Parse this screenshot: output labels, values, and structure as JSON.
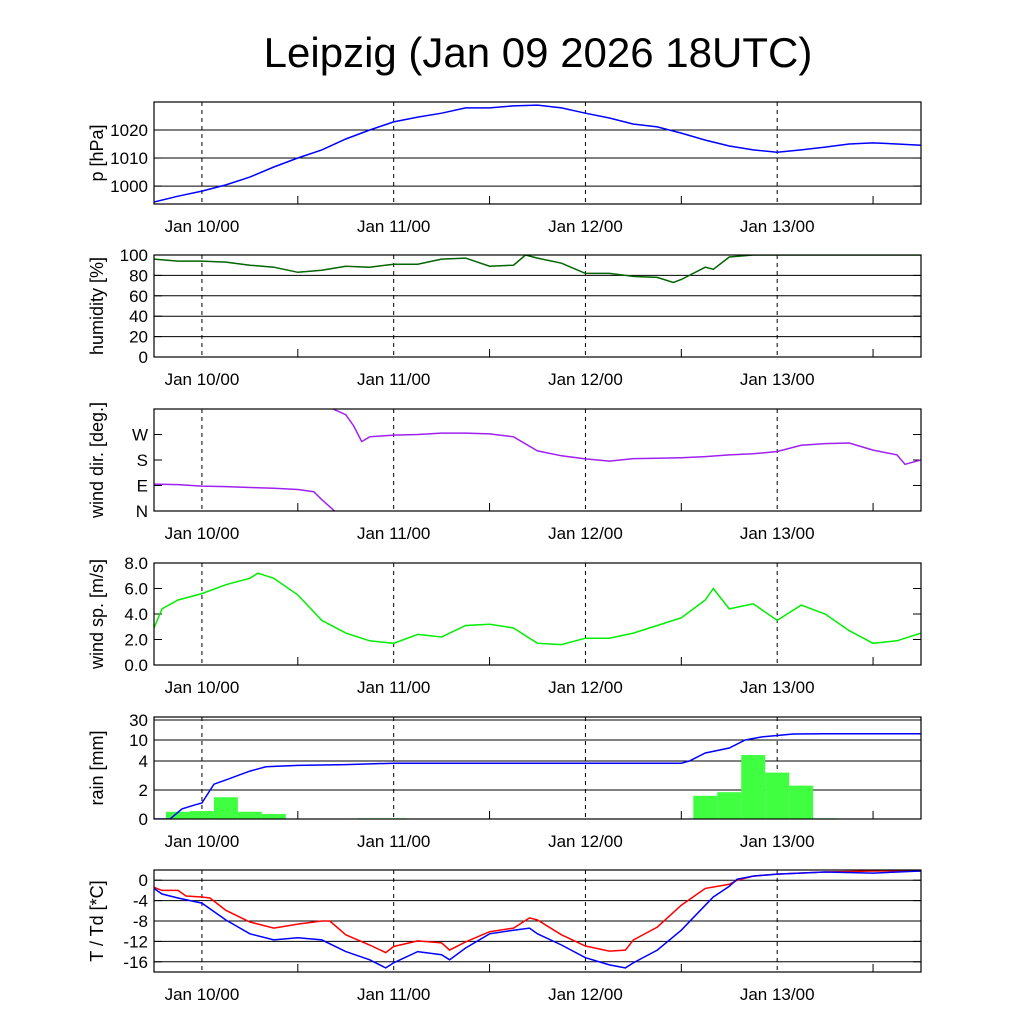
{
  "title": "Leipzig (Jan 09 2026 18UTC)",
  "chart_data": [
    {
      "id": "pressure",
      "type": "line",
      "ylabel": "p [hPa]",
      "ylim": [
        993.6,
        1030
      ],
      "x_unit": "hours since Jan 09 18UTC",
      "xlim": [
        0,
        96
      ],
      "xticks": [
        {
          "h": 6,
          "label": "Jan 10/00"
        },
        {
          "h": 30,
          "label": "Jan 11/00"
        },
        {
          "h": 54,
          "label": "Jan 12/00"
        },
        {
          "h": 78,
          "label": "Jan 13/00"
        }
      ],
      "yticks": [
        {
          "v": 1000,
          "label": "1000"
        },
        {
          "v": 1010,
          "label": "1010"
        },
        {
          "v": 1020,
          "label": "1020"
        }
      ],
      "grid": true,
      "series": [
        {
          "name": "pressure",
          "color": "#0000ff",
          "x": [
            0,
            3,
            6,
            9,
            12,
            15,
            18,
            21,
            24,
            27,
            30,
            33,
            36,
            39,
            42,
            45,
            48,
            51,
            54,
            57,
            60,
            63,
            66,
            69,
            72,
            75,
            78,
            81,
            84,
            87,
            90,
            93,
            96
          ],
          "values": [
            994.3,
            996.4,
            998.2,
            1000.4,
            1003.2,
            1006.8,
            1010,
            1012.9,
            1016.8,
            1020,
            1022.9,
            1024.6,
            1026,
            1027.9,
            1027.9,
            1028.6,
            1028.9,
            1027.9,
            1026,
            1024.3,
            1022.1,
            1021.1,
            1018.9,
            1016.4,
            1014.3,
            1012.9,
            1012.1,
            1012.9,
            1013.9,
            1015,
            1015.4,
            1015,
            1014.6
          ]
        }
      ]
    },
    {
      "id": "humidity",
      "type": "line",
      "ylabel": "humidity [%]",
      "ylim": [
        0,
        100
      ],
      "x_unit": "hours since Jan 09 18UTC",
      "xlim": [
        0,
        96
      ],
      "xticks": [
        {
          "h": 6,
          "label": "Jan 10/00"
        },
        {
          "h": 30,
          "label": "Jan 11/00"
        },
        {
          "h": 54,
          "label": "Jan 12/00"
        },
        {
          "h": 78,
          "label": "Jan 13/00"
        }
      ],
      "yticks": [
        {
          "v": 0,
          "label": "0"
        },
        {
          "v": 20,
          "label": "20"
        },
        {
          "v": 40,
          "label": "40"
        },
        {
          "v": 60,
          "label": "60"
        },
        {
          "v": 80,
          "label": "80"
        },
        {
          "v": 100,
          "label": "100"
        }
      ],
      "grid": true,
      "series": [
        {
          "name": "humidity",
          "color": "#006400",
          "x": [
            0,
            3,
            6,
            9,
            12,
            15,
            18,
            21,
            24,
            27,
            30,
            33,
            36,
            39,
            42,
            45,
            46.5,
            48,
            51,
            54,
            57,
            60,
            63,
            65,
            66,
            69,
            70,
            72,
            75,
            78,
            84,
            90,
            96
          ],
          "values": [
            96,
            94,
            94,
            93,
            90,
            88,
            83,
            85,
            89,
            88,
            91,
            91,
            96,
            97,
            89,
            90,
            100,
            97,
            92,
            82,
            82,
            79,
            78,
            73,
            76,
            88,
            86,
            98,
            100,
            100,
            100,
            100,
            100
          ]
        }
      ]
    },
    {
      "id": "wind_direction",
      "type": "line",
      "ylabel": "wind dir. [deg.]",
      "ylim": [
        0,
        360
      ],
      "x_unit": "hours since Jan 09 18UTC",
      "xlim": [
        0,
        96
      ],
      "xticks": [
        {
          "h": 6,
          "label": "Jan 10/00"
        },
        {
          "h": 30,
          "label": "Jan 11/00"
        },
        {
          "h": 54,
          "label": "Jan 12/00"
        },
        {
          "h": 78,
          "label": "Jan 13/00"
        }
      ],
      "yticks": [
        {
          "v": 0,
          "label": "N"
        },
        {
          "v": 90,
          "label": "E"
        },
        {
          "v": 180,
          "label": "S"
        },
        {
          "v": 270,
          "label": "W"
        }
      ],
      "grid": false,
      "series": [
        {
          "name": "wind direction",
          "color": "#a020f0",
          "x": [
            0,
            3,
            6,
            9,
            12,
            15,
            18,
            20,
            21,
            22.6,
            22.4,
            24,
            25,
            26,
            27,
            30,
            33,
            36,
            39,
            42,
            45,
            48,
            51,
            54,
            57,
            60,
            63,
            66,
            69,
            72,
            75,
            78,
            81,
            84,
            87,
            90,
            93,
            94,
            96
          ],
          "values": [
            95,
            93,
            88,
            86,
            83,
            80,
            76,
            68,
            40,
            0,
            360,
            340,
            300,
            245,
            262,
            268,
            270,
            275,
            275,
            272,
            262,
            212,
            195,
            184,
            176,
            185,
            186,
            188,
            192,
            198,
            202,
            210,
            232,
            238,
            240,
            215,
            198,
            165,
            180
          ]
        }
      ]
    },
    {
      "id": "wind_speed",
      "type": "line",
      "ylabel": "wind sp. [m/s]",
      "ylim": [
        0,
        8
      ],
      "x_unit": "hours since Jan 09 18UTC",
      "xlim": [
        0,
        96
      ],
      "xticks": [
        {
          "h": 6,
          "label": "Jan 10/00"
        },
        {
          "h": 30,
          "label": "Jan 11/00"
        },
        {
          "h": 54,
          "label": "Jan 12/00"
        },
        {
          "h": 78,
          "label": "Jan 13/00"
        }
      ],
      "yticks": [
        {
          "v": 0,
          "label": "0.0"
        },
        {
          "v": 2,
          "label": "2.0"
        },
        {
          "v": 4,
          "label": "4.0"
        },
        {
          "v": 6,
          "label": "6.0"
        },
        {
          "v": 8,
          "label": "8.0"
        }
      ],
      "grid": false,
      "series": [
        {
          "name": "wind speed",
          "color": "#00ee00",
          "x": [
            0,
            1,
            3,
            6,
            9,
            12,
            13,
            15,
            18,
            21,
            24,
            27,
            30,
            33,
            36,
            39,
            42,
            45,
            48,
            51,
            54,
            57,
            60,
            63,
            66,
            69,
            70,
            72,
            75,
            78,
            81,
            84,
            87,
            90,
            93,
            96
          ],
          "values": [
            2.9,
            4.4,
            5.1,
            5.6,
            6.3,
            6.8,
            7.2,
            6.8,
            5.5,
            3.5,
            2.5,
            1.9,
            1.7,
            2.4,
            2.2,
            3.1,
            3.2,
            2.9,
            1.7,
            1.6,
            2.1,
            2.1,
            2.5,
            3.1,
            3.7,
            5.1,
            6.0,
            4.4,
            4.8,
            3.5,
            4.7,
            4.0,
            2.7,
            1.7,
            1.9,
            2.5
          ]
        }
      ]
    },
    {
      "id": "rain",
      "type": "bar+line",
      "ylabel": "rain [mm]",
      "ylim": [
        0,
        30
      ],
      "x_unit": "hours since Jan 09 18UTC",
      "xlim": [
        0,
        96
      ],
      "xticks": [
        {
          "h": 6,
          "label": "Jan 10/00"
        },
        {
          "h": 30,
          "label": "Jan 11/00"
        },
        {
          "h": 54,
          "label": "Jan 12/00"
        },
        {
          "h": 78,
          "label": "Jan 13/00"
        }
      ],
      "yticks": [
        {
          "v": 0,
          "label": "0"
        },
        {
          "v": 2,
          "label": "2"
        },
        {
          "v": 4,
          "label": "4"
        },
        {
          "v": 10,
          "label": "10"
        },
        {
          "v": 30,
          "label": "30"
        }
      ],
      "grid": true,
      "bars": {
        "name": "3h precipitation",
        "color": "#40ff40",
        "width_hours": 3,
        "x": [
          3,
          6,
          9,
          12,
          15,
          27,
          30,
          69,
          72,
          75,
          78,
          81,
          84
        ],
        "values": [
          0.5,
          0.55,
          1.5,
          0.5,
          0.35,
          0.05,
          0.05,
          1.6,
          1.85,
          5.7,
          3.2,
          2.3,
          0.05
        ]
      },
      "series": [
        {
          "name": "accumulated precipitation",
          "color": "#0000ff",
          "x": [
            0,
            2,
            3.5,
            5,
            6,
            7.5,
            9,
            12,
            14,
            18,
            24,
            30,
            48,
            66,
            67,
            69,
            72,
            74,
            76,
            78,
            80,
            84,
            90,
            96
          ],
          "values": [
            0,
            0,
            0.7,
            0.95,
            1.1,
            2.4,
            2.7,
            3.3,
            3.6,
            3.7,
            3.75,
            3.85,
            3.85,
            3.85,
            4.0,
            6.3,
            7.7,
            10,
            13,
            14.5,
            16,
            16.3,
            16.3,
            16.3
          ]
        }
      ]
    },
    {
      "id": "temperature",
      "type": "line",
      "ylabel": "T / Td [*C]",
      "ylim": [
        -18,
        2
      ],
      "x_unit": "hours since Jan 09 18UTC",
      "xlim": [
        0,
        96
      ],
      "xticks": [
        {
          "h": 6,
          "label": "Jan 10/00"
        },
        {
          "h": 30,
          "label": "Jan 11/00"
        },
        {
          "h": 54,
          "label": "Jan 12/00"
        },
        {
          "h": 78,
          "label": "Jan 13/00"
        }
      ],
      "yticks": [
        {
          "v": -16,
          "label": "-16"
        },
        {
          "v": -12,
          "label": "-12"
        },
        {
          "v": -8,
          "label": "-8"
        },
        {
          "v": -4,
          "label": "-4"
        },
        {
          "v": 0,
          "label": "0"
        }
      ],
      "grid": true,
      "series": [
        {
          "name": "T",
          "color": "#ff0000",
          "x": [
            0,
            1,
            3,
            4,
            6,
            7,
            9,
            12,
            15,
            18,
            21,
            22,
            24,
            27,
            29,
            30,
            33,
            36,
            37,
            39,
            42,
            45,
            47,
            48,
            51,
            54,
            57,
            59,
            60,
            63,
            66,
            69,
            72,
            73,
            75,
            78,
            84,
            90,
            96
          ],
          "values": [
            -1.4,
            -2,
            -2,
            -3.1,
            -3.3,
            -3.5,
            -5.9,
            -8.2,
            -9.4,
            -8.6,
            -8,
            -8,
            -10.7,
            -12.7,
            -14.2,
            -13,
            -11.9,
            -12.3,
            -13.7,
            -12.1,
            -10.1,
            -9.4,
            -7.4,
            -7.8,
            -10.7,
            -12.9,
            -13.9,
            -13.7,
            -11.7,
            -9.2,
            -4.9,
            -1.6,
            -0.8,
            0,
            0.8,
            1.2,
            1.6,
            1.8,
            1.8
          ]
        },
        {
          "name": "Td",
          "color": "#0000ff",
          "x": [
            0,
            1,
            3,
            6,
            9,
            12,
            15,
            18,
            21,
            24,
            27,
            29,
            30,
            33,
            36,
            37,
            39,
            42,
            45,
            47,
            48,
            51,
            54,
            57,
            59,
            60,
            63,
            66,
            69,
            70,
            72,
            73,
            75,
            78,
            84,
            90,
            96
          ],
          "values": [
            -1.6,
            -2.7,
            -3.5,
            -4.5,
            -7.8,
            -10.5,
            -11.7,
            -11.3,
            -11.7,
            -14,
            -15.6,
            -17.2,
            -16.2,
            -14,
            -14.6,
            -15.6,
            -13.3,
            -10.5,
            -9.8,
            -9.4,
            -10.5,
            -12.7,
            -15.2,
            -16.6,
            -17.2,
            -16.2,
            -13.7,
            -9.8,
            -4.9,
            -3.3,
            -1.2,
            0.2,
            0.8,
            1.2,
            1.6,
            1.4,
            1.8
          ]
        }
      ]
    }
  ]
}
